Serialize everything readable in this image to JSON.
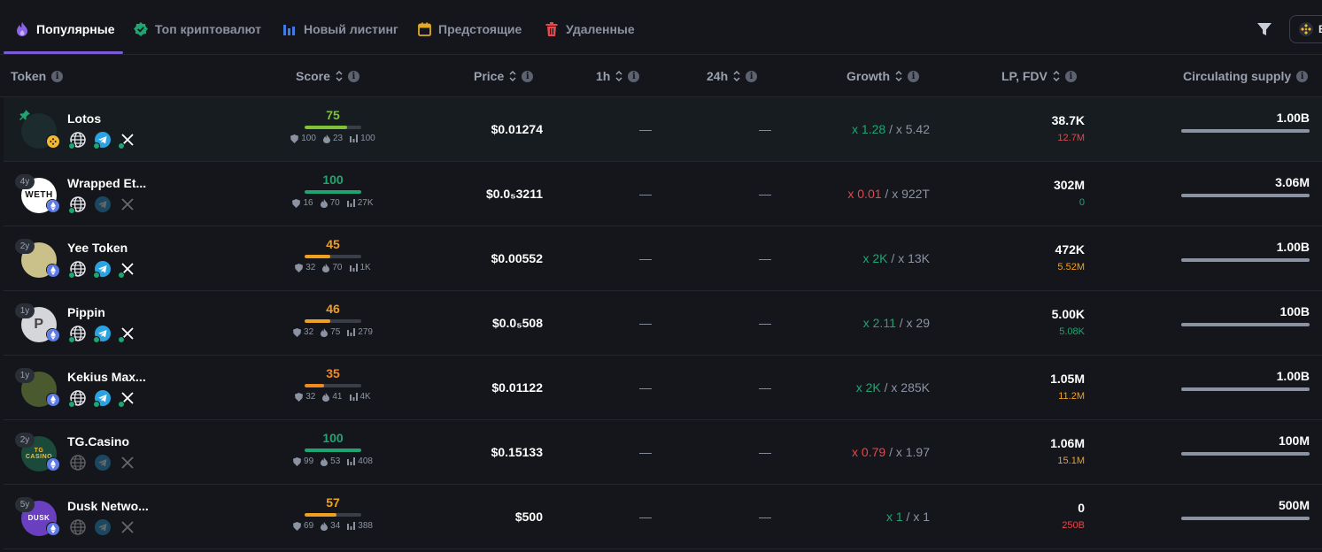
{
  "tabs": [
    {
      "label": "Популярные",
      "icon": "flame-icon",
      "active": true
    },
    {
      "label": "Топ криптовалют",
      "icon": "verified-badge-icon",
      "active": false
    },
    {
      "label": "Новый листинг",
      "icon": "bars-icon",
      "active": false
    },
    {
      "label": "Предстоящие",
      "icon": "calendar-icon",
      "active": false
    },
    {
      "label": "Удаленные",
      "icon": "trash-icon",
      "active": false
    }
  ],
  "toolbar": {
    "chain_label": "B"
  },
  "columns": {
    "token": "Token",
    "score": "Score",
    "price": "Price",
    "h1": "1h",
    "h24": "24h",
    "growth": "Growth",
    "lp": "LP, FDV",
    "supply": "Circulating supply"
  },
  "colors": {
    "accent": "#7c5bd6",
    "green": "#1ea672",
    "red": "#e5484d",
    "orange": "#f0a020",
    "score_green": "#7ec23a"
  },
  "rows": [
    {
      "name": "Lotos",
      "age": "",
      "chain": "bnb",
      "avatar_text": "",
      "avatar_bg": "#1c2b2e",
      "socials": [
        true,
        true,
        true
      ],
      "score": "75",
      "score_pct": 0.75,
      "score_color": "#7ec23a",
      "stats": [
        "100",
        "23",
        "100"
      ],
      "price": "$0.01274",
      "h1": "—",
      "h24": "—",
      "growth_a": "x 1.28",
      "growth_a_color": "#1ea672",
      "growth_b": "x 5.42",
      "lp": "38.7K",
      "fdv": "12.7M",
      "fdv_color": "#e5484d",
      "supply": "1.00B"
    },
    {
      "name": "Wrapped Et...",
      "age": "4y",
      "chain": "eth",
      "avatar_text": "WETH",
      "avatar_bg": "#ffffff",
      "socials": [
        true,
        false,
        false
      ],
      "score": "100",
      "score_pct": 1.0,
      "score_color": "#1ea672",
      "stats": [
        "16",
        "70",
        "27K"
      ],
      "price": "$0.0₅3211",
      "h1": "—",
      "h24": "—",
      "growth_a": "x 0.01",
      "growth_a_color": "#e5484d",
      "growth_b": "x 922T",
      "lp": "302M",
      "fdv": "0",
      "fdv_color": "#1ea672",
      "supply": "3.06M"
    },
    {
      "name": "Yee Token",
      "age": "2y",
      "chain": "eth",
      "avatar_text": "",
      "avatar_bg": "#c9c08a",
      "socials": [
        true,
        true,
        true
      ],
      "score": "45",
      "score_pct": 0.45,
      "score_color": "#f0a020",
      "stats": [
        "32",
        "70",
        "1K"
      ],
      "price": "$0.00552",
      "h1": "—",
      "h24": "—",
      "growth_a": "x 2K",
      "growth_a_color": "#1ea672",
      "growth_b": "x 13K",
      "lp": "472K",
      "fdv": "5.52M",
      "fdv_color": "#f0a020",
      "supply": "1.00B"
    },
    {
      "name": "Pippin",
      "age": "1y",
      "chain": "eth",
      "avatar_text": "P",
      "avatar_bg": "#d4d6da",
      "socials": [
        true,
        true,
        true
      ],
      "score": "46",
      "score_pct": 0.46,
      "score_color": "#f0a020",
      "stats": [
        "32",
        "75",
        "279"
      ],
      "price": "$0.0₅508",
      "h1": "—",
      "h24": "—",
      "growth_a": "x 2.11",
      "growth_a_color": "#1ea672",
      "growth_b": "x 29",
      "lp": "5.00K",
      "fdv": "5.08K",
      "fdv_color": "#1ea672",
      "supply": "100B"
    },
    {
      "name": "Kekius Max...",
      "age": "1y",
      "chain": "eth",
      "avatar_text": "",
      "avatar_bg": "#4a5a2e",
      "socials": [
        true,
        true,
        true
      ],
      "score": "35",
      "score_pct": 0.35,
      "score_color": "#f08a20",
      "stats": [
        "32",
        "41",
        "4K"
      ],
      "price": "$0.01122",
      "h1": "—",
      "h24": "—",
      "growth_a": "x 2K",
      "growth_a_color": "#1ea672",
      "growth_b": "x 285K",
      "lp": "1.05M",
      "fdv": "11.2M",
      "fdv_color": "#f0a020",
      "supply": "1.00B"
    },
    {
      "name": "TG.Casino",
      "age": "2y",
      "chain": "eth",
      "avatar_text": "TG CASINO",
      "avatar_bg": "#1b4a3a",
      "socials": [
        false,
        false,
        false
      ],
      "score": "100",
      "score_pct": 1.0,
      "score_color": "#1ea672",
      "stats": [
        "99",
        "53",
        "408"
      ],
      "price": "$0.15133",
      "h1": "—",
      "h24": "—",
      "growth_a": "x 0.79",
      "growth_a_color": "#e5484d",
      "growth_b": "x 1.97",
      "lp": "1.06M",
      "fdv": "15.1M",
      "fdv_color": "#f0a020",
      "supply": "100M"
    },
    {
      "name": "Dusk Netwo...",
      "age": "5y",
      "chain": "eth",
      "avatar_text": "DUSK",
      "avatar_bg": "#6a3fc0",
      "socials": [
        false,
        false,
        false
      ],
      "score": "57",
      "score_pct": 0.57,
      "score_color": "#f0a020",
      "stats": [
        "69",
        "34",
        "388"
      ],
      "price": "$500",
      "h1": "—",
      "h24": "—",
      "growth_a": "x 1",
      "growth_a_color": "#1ea672",
      "growth_b": "x 1",
      "lp": "0",
      "fdv": "250B",
      "fdv_color": "#e5484d",
      "supply": "500M"
    }
  ]
}
